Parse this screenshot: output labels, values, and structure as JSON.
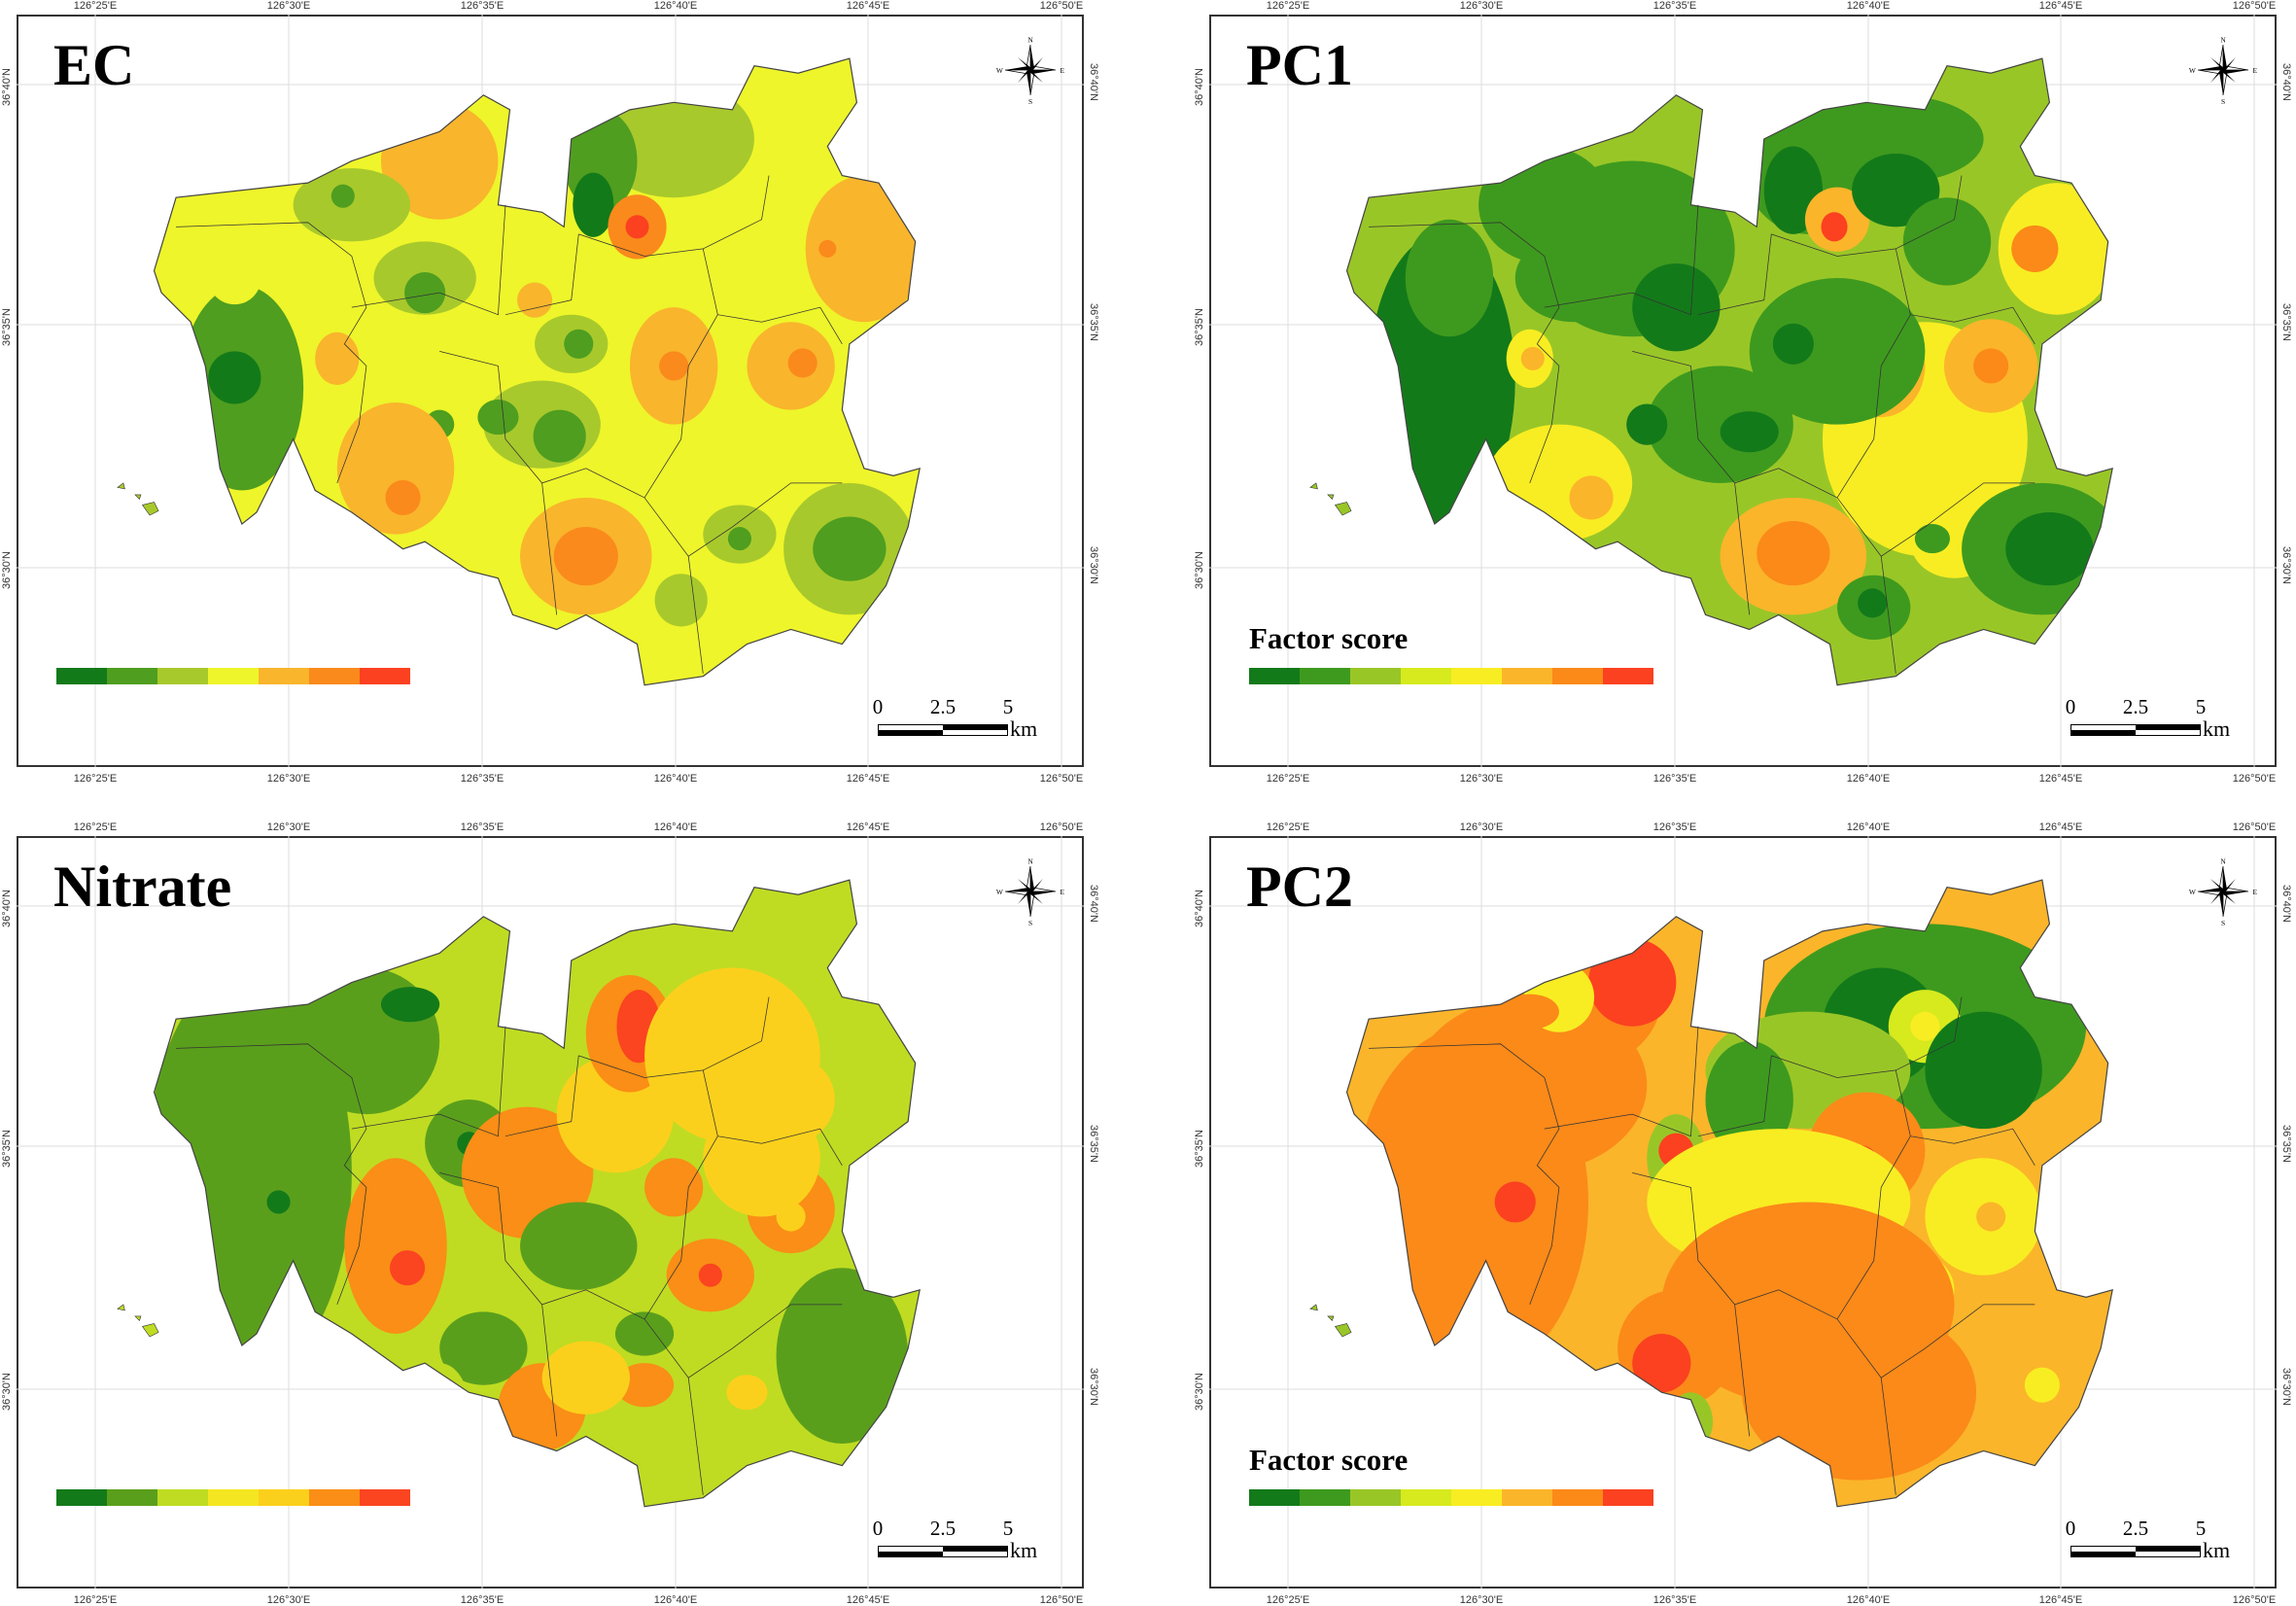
{
  "panels": [
    {
      "title": "EC",
      "legend_title": null,
      "legend_colors": [
        "#137a1a",
        "#4f9e1f",
        "#a8c92c",
        "#eef52a",
        "#f9b52c",
        "#fa8a1c",
        "#fb4120"
      ]
    },
    {
      "title": "PC1",
      "legend_title": "Factor score",
      "legend_colors": [
        "#137a1a",
        "#3e9a1e",
        "#99c627",
        "#d6ea1e",
        "#f8ed22",
        "#fbb52a",
        "#fb8a19",
        "#fb4120"
      ]
    },
    {
      "title": "Nitrate",
      "legend_title": null,
      "legend_colors": [
        "#137a1a",
        "#5a9f1c",
        "#bfdc22",
        "#f5e622",
        "#fbd01c",
        "#fa8e16",
        "#fb4420"
      ]
    },
    {
      "title": "PC2",
      "legend_title": "Factor score",
      "legend_colors": [
        "#137a1a",
        "#3e9a1e",
        "#99c627",
        "#d6ea1e",
        "#f8ed22",
        "#fbb52a",
        "#fb8a19",
        "#fb4120"
      ]
    }
  ],
  "lon_ticks": [
    "126°25'E",
    "126°30'E",
    "126°35'E",
    "126°40'E",
    "126°45'E",
    "126°50'E"
  ],
  "lat_ticks": [
    "36°40'N",
    "36°35'N",
    "36°30'N"
  ],
  "compass": {
    "n": "N",
    "s": "S",
    "e": "E",
    "w": "W"
  },
  "scale_bar": {
    "labels": [
      "0",
      "2.5",
      "5"
    ],
    "unit": "km"
  }
}
